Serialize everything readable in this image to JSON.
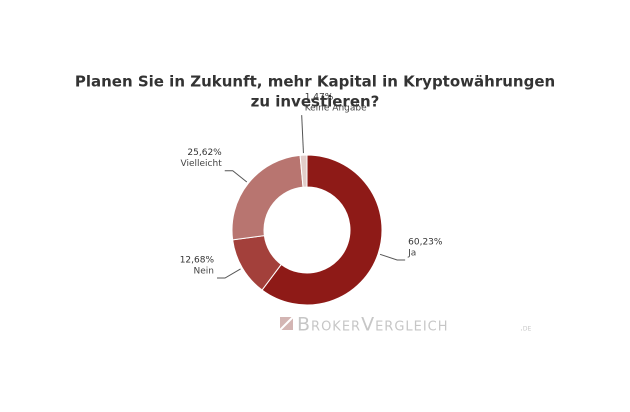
{
  "chart_data": {
    "type": "donut",
    "title_lines": [
      "Planen Sie in Zukunft, mehr Kapital in Kryptowährungen",
      "zu investieren?"
    ],
    "categories": [
      "Ja",
      "Nein",
      "Vielleicht",
      "Keine Angabe"
    ],
    "values": [
      60.23,
      12.68,
      25.62,
      1.47
    ],
    "value_labels": [
      "60,23%",
      "12,68%",
      "25,62%",
      "1,47%"
    ],
    "colors": [
      "#8e1a17",
      "#a3403b",
      "#b87570",
      "#e2cdca"
    ],
    "watermark": "BrokerVergleich",
    "watermark_suffix": ".de"
  }
}
